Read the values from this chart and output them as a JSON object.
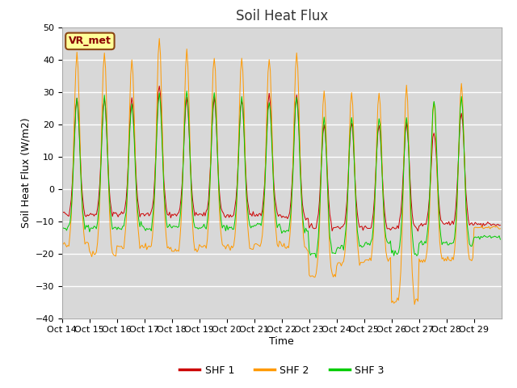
{
  "title": "Soil Heat Flux",
  "ylabel": "Soil Heat Flux (W/m2)",
  "xlabel": "Time",
  "ylim": [
    -40,
    50
  ],
  "background_color": "#ffffff",
  "plot_bg_color": "#d8d8d8",
  "grid_color": "#ffffff",
  "label_box_text": "VR_met",
  "x_tick_labels": [
    "Oct 14",
    "Oct 15",
    "Oct 16",
    "Oct 17",
    "Oct 18",
    "Oct 19",
    "Oct 20",
    "Oct 21",
    "Oct 22",
    "Oct 23",
    "Oct 24",
    "Oct 25",
    "Oct 26",
    "Oct 27",
    "Oct 28",
    "Oct 29"
  ],
  "colors": {
    "SHF1": "#cc0000",
    "SHF2": "#ff9900",
    "SHF3": "#00cc00"
  },
  "legend_labels": [
    "SHF 1",
    "SHF 2",
    "SHF 3"
  ],
  "hours_per_day": 24,
  "n_days": 16,
  "title_fontsize": 12,
  "axis_fontsize": 9,
  "tick_fontsize": 8,
  "yticks": [
    -40,
    -30,
    -20,
    -10,
    0,
    10,
    20,
    30,
    40,
    50
  ]
}
